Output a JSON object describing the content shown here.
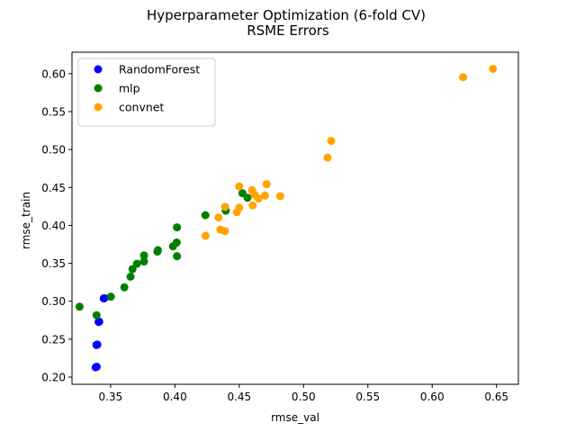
{
  "chart_data": {
    "type": "scatter",
    "title": "Hyperparameter Optimization (6-fold CV)",
    "subtitle": "RSME Errors",
    "xlabel": "rmse_val",
    "ylabel": "rmse_train",
    "xlim": [
      0.32,
      0.667
    ],
    "ylim": [
      0.1905,
      0.6283
    ],
    "x_ticks": [
      0.35,
      0.4,
      0.45,
      0.5,
      0.55,
      0.6,
      0.65
    ],
    "x_tick_labels": [
      "0.35",
      "0.40",
      "0.45",
      "0.50",
      "0.55",
      "0.60",
      "0.65"
    ],
    "y_ticks": [
      0.2,
      0.25,
      0.3,
      0.35,
      0.4,
      0.45,
      0.5,
      0.55,
      0.6
    ],
    "y_tick_labels": [
      "0.20",
      "0.25",
      "0.30",
      "0.35",
      "0.40",
      "0.45",
      "0.50",
      "0.55",
      "0.60"
    ],
    "grid": false,
    "legend_position": "upper-left",
    "series": [
      {
        "name": "RandomForest",
        "color": "#0000ff",
        "points": [
          [
            0.3384,
            0.2129
          ],
          [
            0.3392,
            0.2137
          ],
          [
            0.339,
            0.2424
          ],
          [
            0.3397,
            0.2428
          ],
          [
            0.3407,
            0.2727
          ],
          [
            0.3412,
            0.2731
          ],
          [
            0.3447,
            0.3037
          ],
          [
            0.3452,
            0.304
          ]
        ]
      },
      {
        "name": "mlp",
        "color": "#008000",
        "points": [
          [
            0.3259,
            0.2928
          ],
          [
            0.3391,
            0.2816
          ],
          [
            0.3502,
            0.306
          ],
          [
            0.3607,
            0.3183
          ],
          [
            0.3655,
            0.3324
          ],
          [
            0.367,
            0.3424
          ],
          [
            0.3705,
            0.3494
          ],
          [
            0.376,
            0.3604
          ],
          [
            0.376,
            0.3524
          ],
          [
            0.3864,
            0.3654
          ],
          [
            0.3868,
            0.3674
          ],
          [
            0.3985,
            0.3724
          ],
          [
            0.4014,
            0.3774
          ],
          [
            0.4016,
            0.3594
          ],
          [
            0.4016,
            0.3974
          ],
          [
            0.4237,
            0.4134
          ],
          [
            0.4395,
            0.4194
          ],
          [
            0.4525,
            0.4424
          ],
          [
            0.4564,
            0.4364
          ]
        ]
      },
      {
        "name": "convnet",
        "color": "#ffa500",
        "points": [
          [
            0.4238,
            0.3864
          ],
          [
            0.4339,
            0.4104
          ],
          [
            0.4354,
            0.3944
          ],
          [
            0.4389,
            0.3924
          ],
          [
            0.439,
            0.4244
          ],
          [
            0.4481,
            0.4174
          ],
          [
            0.45,
            0.4234
          ],
          [
            0.45,
            0.4514
          ],
          [
            0.46,
            0.4464
          ],
          [
            0.4604,
            0.4264
          ],
          [
            0.462,
            0.4404
          ],
          [
            0.465,
            0.4354
          ],
          [
            0.47,
            0.4394
          ],
          [
            0.4713,
            0.4544
          ],
          [
            0.4819,
            0.4384
          ],
          [
            0.5187,
            0.4894
          ],
          [
            0.5215,
            0.5114
          ],
          [
            0.624,
            0.5954
          ],
          [
            0.6472,
            0.6064
          ]
        ]
      }
    ]
  }
}
